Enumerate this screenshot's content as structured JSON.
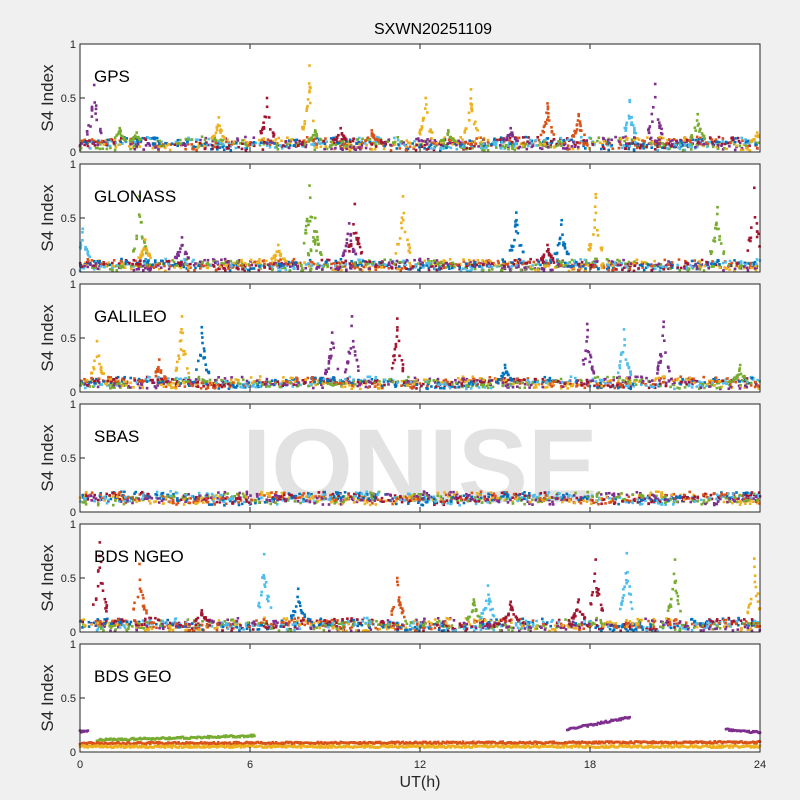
{
  "chart_data": {
    "type": "scatter",
    "title": "SXWN20251109",
    "xlabel": "UT(h)",
    "ylabel": "S4 Index",
    "xlim": [
      0,
      24
    ],
    "ylim": [
      0,
      1
    ],
    "xticks": [
      "0",
      "6",
      "12",
      "18",
      "24"
    ],
    "yticks": [
      "0",
      "0.5",
      "1"
    ],
    "watermark": "IONISE",
    "colors": [
      "#0072BD",
      "#D95319",
      "#EDB120",
      "#7E2F8E",
      "#77AC30",
      "#4DBEEE",
      "#A2142F"
    ],
    "panels": [
      {
        "name": "GPS",
        "baseline": 0.07,
        "noise": 0.05,
        "spikes": [
          [
            0.5,
            0.62,
            3
          ],
          [
            1.4,
            0.22,
            4
          ],
          [
            2.0,
            0.18,
            4
          ],
          [
            4.9,
            0.32,
            2
          ],
          [
            6.6,
            0.5,
            6
          ],
          [
            8.1,
            0.8,
            2
          ],
          [
            8.3,
            0.2,
            4
          ],
          [
            9.2,
            0.22,
            6
          ],
          [
            10.3,
            0.2,
            1
          ],
          [
            12.2,
            0.5,
            2
          ],
          [
            13.0,
            0.2,
            4
          ],
          [
            13.8,
            0.58,
            2
          ],
          [
            15.2,
            0.22,
            3
          ],
          [
            16.5,
            0.45,
            1
          ],
          [
            17.6,
            0.35,
            1
          ],
          [
            19.4,
            0.48,
            5
          ],
          [
            20.3,
            0.63,
            3
          ],
          [
            21.8,
            0.35,
            4
          ],
          [
            23.9,
            0.18,
            2
          ]
        ]
      },
      {
        "name": "GLONASS",
        "baseline": 0.06,
        "noise": 0.04,
        "spikes": [
          [
            0.1,
            0.4,
            5
          ],
          [
            2.1,
            0.7,
            4
          ],
          [
            2.3,
            0.3,
            2
          ],
          [
            3.6,
            0.32,
            3
          ],
          [
            7.0,
            0.25,
            2
          ],
          [
            8.1,
            0.8,
            4
          ],
          [
            8.3,
            0.5,
            4
          ],
          [
            9.5,
            0.45,
            3
          ],
          [
            9.7,
            0.63,
            6
          ],
          [
            11.4,
            0.7,
            2
          ],
          [
            15.4,
            0.55,
            0
          ],
          [
            16.5,
            0.25,
            6
          ],
          [
            17.0,
            0.48,
            0
          ],
          [
            18.2,
            0.72,
            2
          ],
          [
            22.5,
            0.6,
            4
          ],
          [
            23.8,
            0.78,
            6
          ]
        ]
      },
      {
        "name": "GALILEO",
        "baseline": 0.08,
        "noise": 0.04,
        "spikes": [
          [
            0.6,
            0.47,
            2
          ],
          [
            2.8,
            0.3,
            1
          ],
          [
            3.6,
            0.7,
            2
          ],
          [
            4.3,
            0.6,
            0
          ],
          [
            8.9,
            0.55,
            3
          ],
          [
            9.6,
            0.7,
            3
          ],
          [
            11.2,
            0.68,
            6
          ],
          [
            15.0,
            0.25,
            0
          ],
          [
            17.9,
            0.63,
            3
          ],
          [
            19.2,
            0.58,
            5
          ],
          [
            20.6,
            0.65,
            3
          ],
          [
            23.3,
            0.25,
            4
          ]
        ]
      },
      {
        "name": "SBAS",
        "baseline": 0.12,
        "noise": 0.05,
        "spikes": []
      },
      {
        "name": "BDS NGEO",
        "baseline": 0.06,
        "noise": 0.05,
        "spikes": [
          [
            0.7,
            0.83,
            6
          ],
          [
            2.1,
            0.63,
            1
          ],
          [
            4.3,
            0.2,
            6
          ],
          [
            6.5,
            0.72,
            5
          ],
          [
            7.7,
            0.4,
            0
          ],
          [
            11.2,
            0.5,
            1
          ],
          [
            13.9,
            0.3,
            4
          ],
          [
            14.4,
            0.43,
            5
          ],
          [
            15.2,
            0.28,
            6
          ],
          [
            17.6,
            0.3,
            6
          ],
          [
            18.2,
            0.67,
            6
          ],
          [
            19.3,
            0.73,
            5
          ],
          [
            21.0,
            0.67,
            4
          ],
          [
            23.8,
            0.68,
            2
          ]
        ]
      },
      {
        "name": "BDS GEO",
        "baseline": 0.07,
        "noise": 0.01,
        "spikes": [],
        "tracks": [
          {
            "color": 4,
            "x": [
              0.6,
              6.2
            ],
            "y": [
              0.11,
              0.15
            ]
          },
          {
            "color": 3,
            "x": [
              0,
              0.3
            ],
            "y": [
              0.19,
              0.19
            ]
          },
          {
            "color": 3,
            "x": [
              17.2,
              19.4
            ],
            "y": [
              0.21,
              0.32
            ]
          },
          {
            "color": 3,
            "x": [
              22.8,
              24
            ],
            "y": [
              0.21,
              0.18
            ]
          },
          {
            "color": 1,
            "x": [
              0,
              24
            ],
            "y": [
              0.08,
              0.09
            ]
          },
          {
            "color": 2,
            "x": [
              0,
              24
            ],
            "y": [
              0.05,
              0.05
            ]
          }
        ]
      }
    ]
  }
}
